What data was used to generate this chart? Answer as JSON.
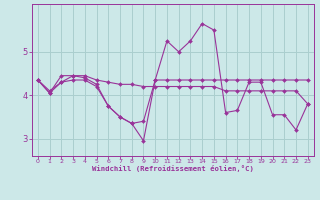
{
  "xlabel": "Windchill (Refroidissement éolien,°C)",
  "background_color": "#cce8e8",
  "grid_color": "#aacece",
  "line_color": "#993399",
  "xlim": [
    -0.5,
    23.5
  ],
  "ylim": [
    2.6,
    6.1
  ],
  "yticks": [
    3,
    4,
    5
  ],
  "xticks": [
    0,
    1,
    2,
    3,
    4,
    5,
    6,
    7,
    8,
    9,
    10,
    11,
    12,
    13,
    14,
    15,
    16,
    17,
    18,
    19,
    20,
    21,
    22,
    23
  ],
  "series": [
    [
      4.35,
      4.05,
      4.3,
      4.35,
      4.35,
      4.2,
      3.75,
      3.5,
      3.35,
      2.95,
      4.35,
      5.25,
      5.0,
      5.25,
      5.65,
      5.5,
      3.6,
      3.65,
      4.3,
      4.3,
      3.55,
      3.55,
      3.2,
      3.8
    ],
    [
      4.35,
      4.05,
      4.45,
      4.45,
      4.4,
      4.25,
      3.75,
      3.5,
      3.35,
      3.4,
      4.35,
      4.35,
      4.35,
      4.35,
      4.35,
      4.35,
      4.35,
      4.35,
      4.35,
      4.35,
      4.35,
      4.35,
      4.35,
      4.35
    ],
    [
      4.35,
      4.1,
      4.3,
      4.45,
      4.45,
      4.35,
      4.3,
      4.25,
      4.25,
      4.2,
      4.2,
      4.2,
      4.2,
      4.2,
      4.2,
      4.2,
      4.1,
      4.1,
      4.1,
      4.1,
      4.1,
      4.1,
      4.1,
      3.8
    ]
  ]
}
